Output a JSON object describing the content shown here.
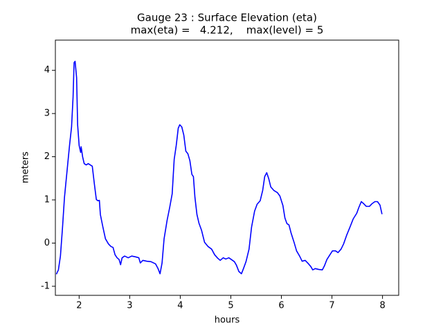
{
  "chart_data": {
    "type": "line",
    "title": "Gauge 23 : Surface Elevation (eta)",
    "subtitle": "max(eta) =   4.212,    max(level) = 5",
    "x_label": "hours",
    "y_label": "meters",
    "xlim": [
      1.53,
      8.32
    ],
    "ylim": [
      -1.21,
      4.7
    ],
    "xticks": [
      2,
      3,
      4,
      5,
      6,
      7,
      8
    ],
    "yticks": [
      -1,
      0,
      1,
      2,
      3,
      4
    ],
    "grid": false,
    "series": [
      {
        "name": "eta",
        "color": "#0000ff",
        "x": [
          1.55,
          1.59,
          1.63,
          1.67,
          1.71,
          1.77,
          1.81,
          1.85,
          1.88,
          1.9,
          1.92,
          1.95,
          1.97,
          2.0,
          2.03,
          2.04,
          2.07,
          2.1,
          2.14,
          2.18,
          2.22,
          2.26,
          2.3,
          2.34,
          2.37,
          2.4,
          2.42,
          2.47,
          2.52,
          2.58,
          2.63,
          2.67,
          2.71,
          2.75,
          2.79,
          2.82,
          2.85,
          2.9,
          2.97,
          3.04,
          3.12,
          3.18,
          3.21,
          3.26,
          3.34,
          3.42,
          3.51,
          3.56,
          3.6,
          3.64,
          3.68,
          3.74,
          3.79,
          3.84,
          3.88,
          3.92,
          3.96,
          3.99,
          4.03,
          4.07,
          4.11,
          4.15,
          4.19,
          4.23,
          4.26,
          4.29,
          4.33,
          4.37,
          4.42,
          4.48,
          4.55,
          4.62,
          4.68,
          4.74,
          4.79,
          4.85,
          4.9,
          4.96,
          5.01,
          5.07,
          5.11,
          5.16,
          5.21,
          5.25,
          5.3,
          5.36,
          5.41,
          5.47,
          5.52,
          5.58,
          5.63,
          5.67,
          5.71,
          5.75,
          5.79,
          5.85,
          5.92,
          5.97,
          6.03,
          6.07,
          6.11,
          6.15,
          6.19,
          6.25,
          6.3,
          6.36,
          6.41,
          6.47,
          6.52,
          6.58,
          6.62,
          6.67,
          6.74,
          6.81,
          6.85,
          6.9,
          6.96,
          7.01,
          7.07,
          7.12,
          7.18,
          7.23,
          7.29,
          7.36,
          7.42,
          7.49,
          7.53,
          7.58,
          7.63,
          7.68,
          7.74,
          7.79,
          7.85,
          7.9,
          7.95,
          7.99
        ],
        "values": [
          -0.72,
          -0.62,
          -0.3,
          0.34,
          1.06,
          1.78,
          2.26,
          2.69,
          3.38,
          4.18,
          4.21,
          3.83,
          2.74,
          2.26,
          2.1,
          2.23,
          1.99,
          1.84,
          1.81,
          1.84,
          1.81,
          1.78,
          1.38,
          1.01,
          0.98,
          0.99,
          0.66,
          0.37,
          0.1,
          -0.02,
          -0.08,
          -0.1,
          -0.27,
          -0.34,
          -0.38,
          -0.5,
          -0.34,
          -0.3,
          -0.34,
          -0.3,
          -0.32,
          -0.34,
          -0.46,
          -0.4,
          -0.42,
          -0.43,
          -0.48,
          -0.59,
          -0.71,
          -0.46,
          0.1,
          0.53,
          0.82,
          1.14,
          1.94,
          2.26,
          2.66,
          2.74,
          2.69,
          2.5,
          2.13,
          2.07,
          1.91,
          1.59,
          1.54,
          1.06,
          0.66,
          0.46,
          0.3,
          0.02,
          -0.08,
          -0.14,
          -0.27,
          -0.35,
          -0.4,
          -0.34,
          -0.37,
          -0.34,
          -0.38,
          -0.43,
          -0.51,
          -0.66,
          -0.71,
          -0.59,
          -0.43,
          -0.14,
          0.37,
          0.74,
          0.9,
          0.98,
          1.22,
          1.54,
          1.63,
          1.49,
          1.3,
          1.22,
          1.17,
          1.09,
          0.87,
          0.58,
          0.45,
          0.42,
          0.24,
          0.02,
          -0.18,
          -0.3,
          -0.42,
          -0.4,
          -0.46,
          -0.54,
          -0.62,
          -0.59,
          -0.61,
          -0.62,
          -0.53,
          -0.38,
          -0.27,
          -0.18,
          -0.18,
          -0.22,
          -0.14,
          -0.02,
          0.18,
          0.38,
          0.56,
          0.69,
          0.82,
          0.96,
          0.91,
          0.85,
          0.85,
          0.91,
          0.96,
          0.96,
          0.88,
          0.67
        ]
      }
    ]
  }
}
